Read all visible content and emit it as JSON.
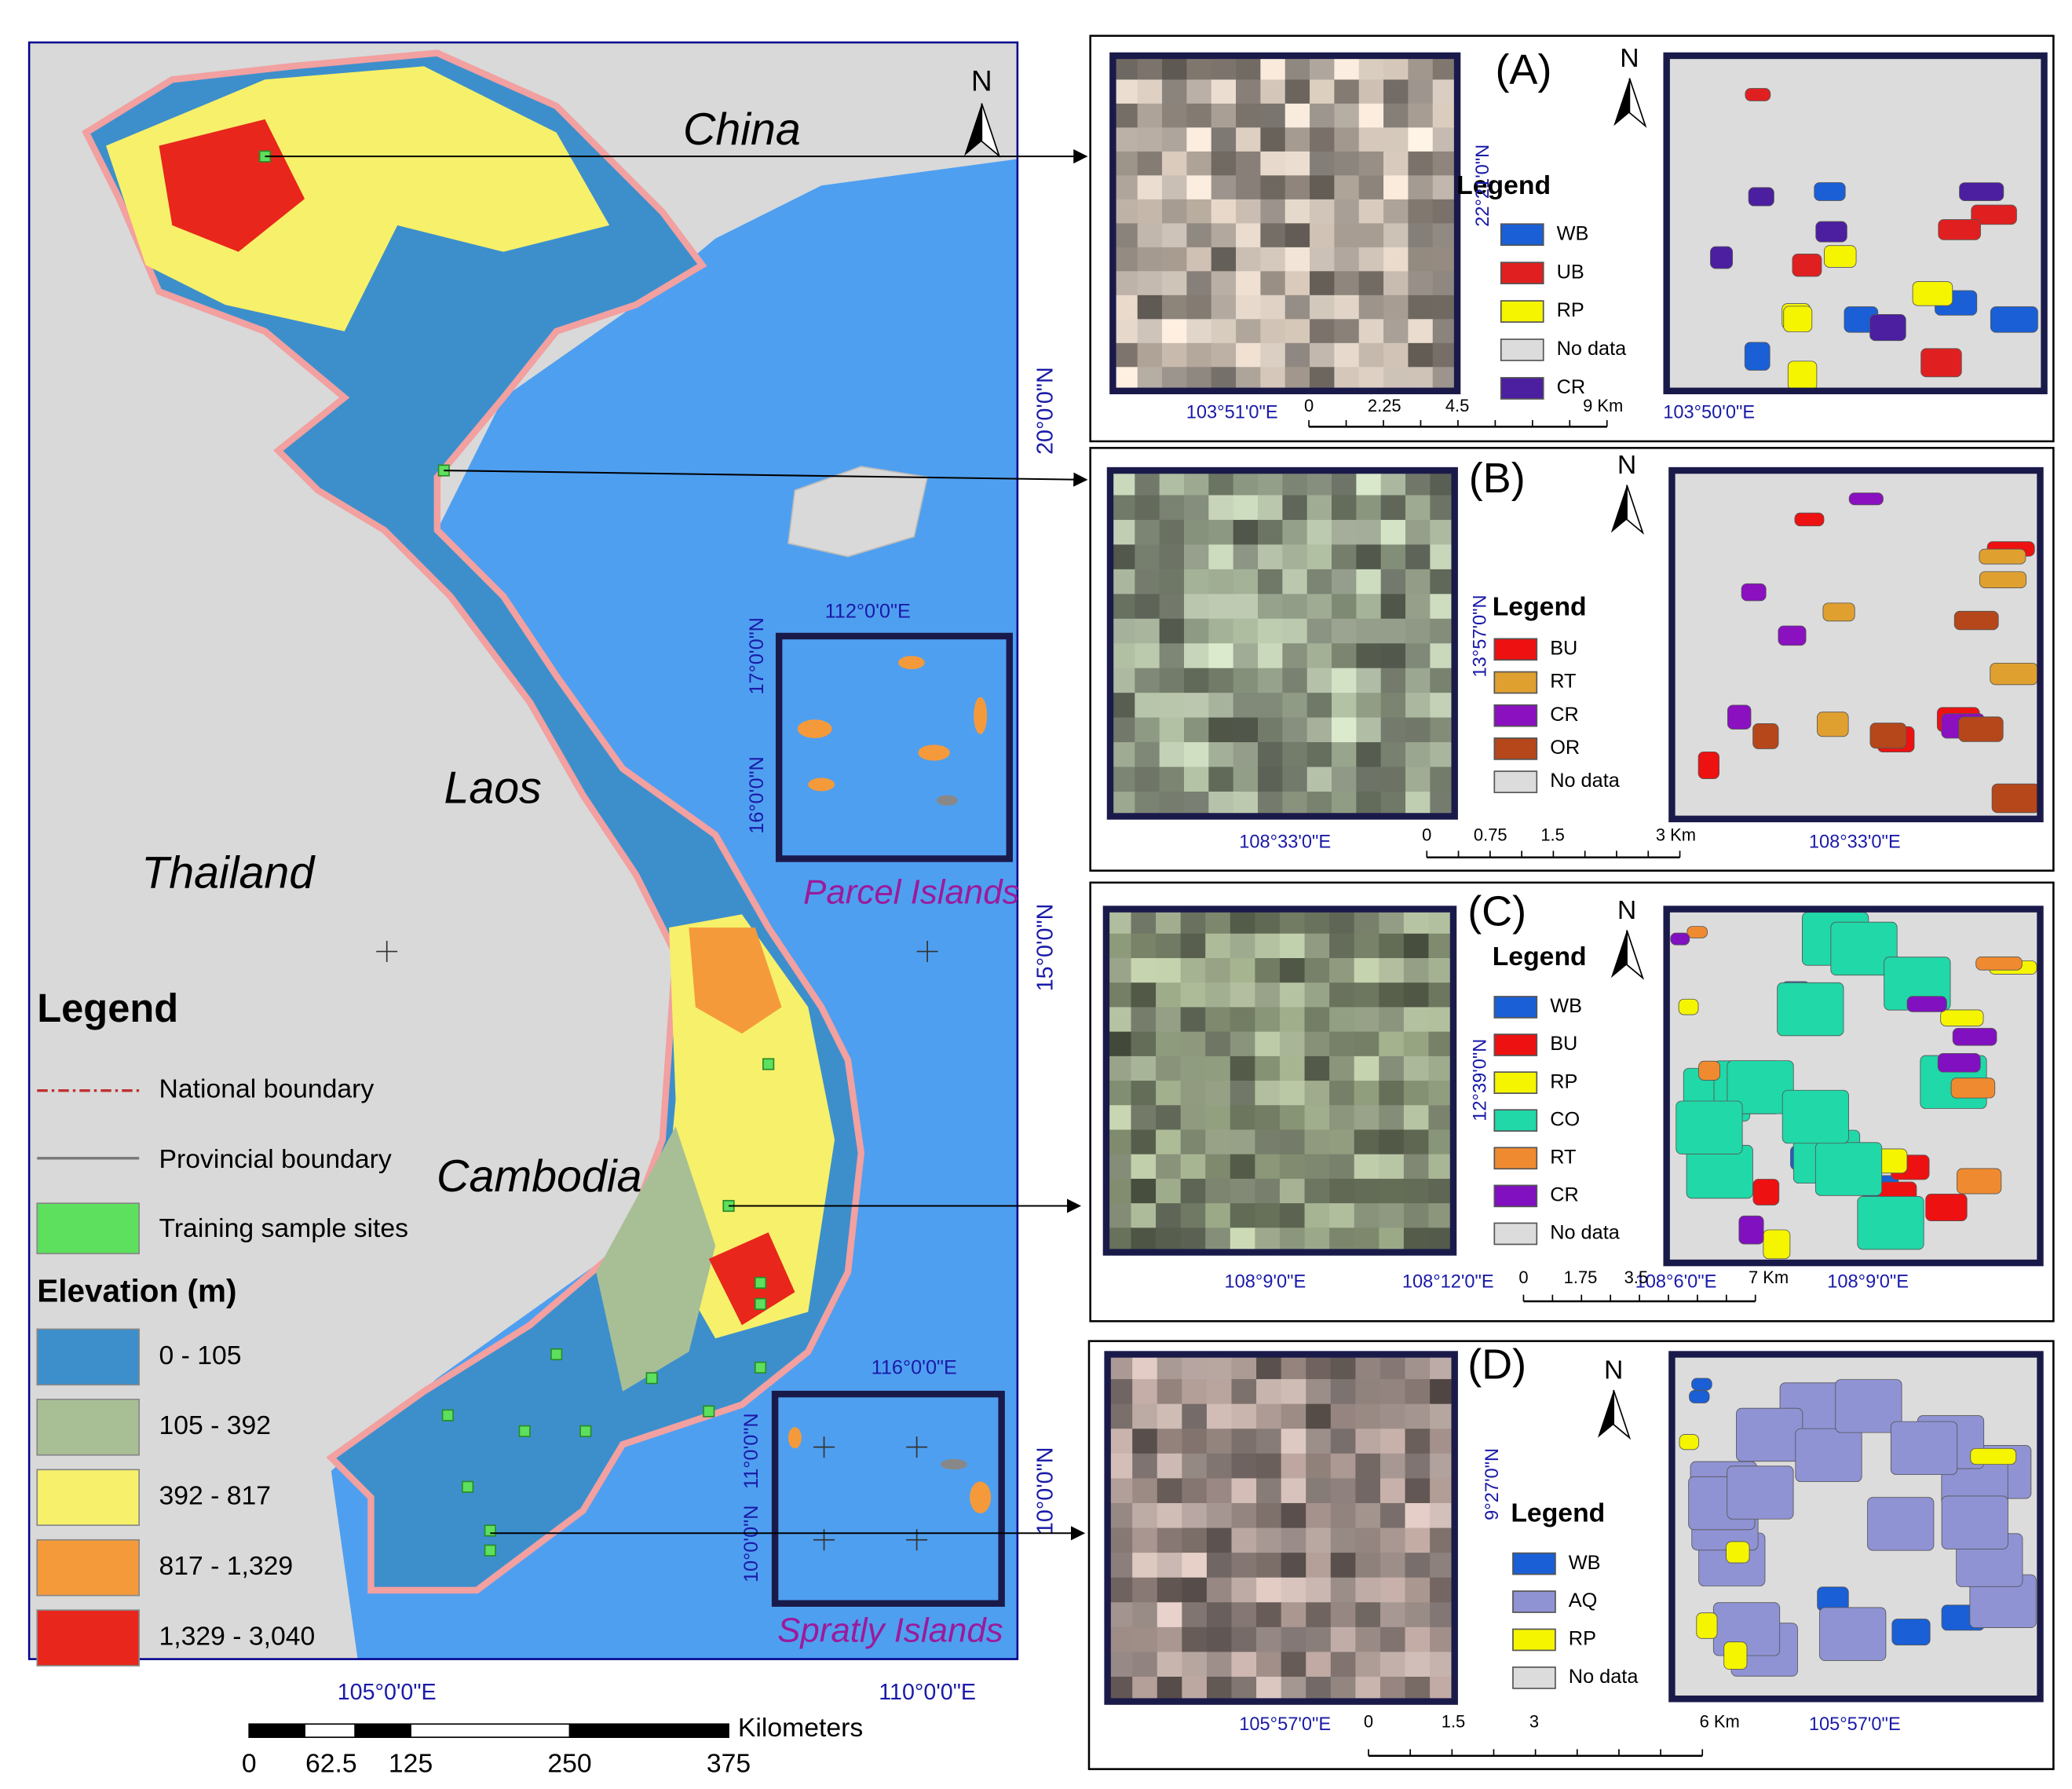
{
  "main_map": {
    "countries": [
      "China",
      "Laos",
      "Thailand",
      "Cambodia"
    ],
    "islands": [
      "Parcel Islands",
      "Spratly Islands"
    ],
    "north": "N",
    "lat_labels": [
      "20°0'0\"N",
      "15°0'0\"N",
      "10°0'0\"N"
    ],
    "lon_labels": [
      "105°0'0\"E",
      "110°0'0\"E"
    ],
    "inset_labels": [
      "112°0'0\"E",
      "17°0'0\"N",
      "16°0'0\"N",
      "116°0'0\"E",
      "11°0'0\"N",
      "10°0'0\"N"
    ],
    "legend": {
      "title": "Legend",
      "items": [
        "National boundary",
        "Provincial boundary",
        "Training sample sites"
      ],
      "elevation_title": "Elevation (m)",
      "elevation_classes": [
        {
          "label": "0 - 105",
          "color": "#3d8fcc"
        },
        {
          "label": "105 - 392",
          "color": "#a8bf96"
        },
        {
          "label": "392 - 817",
          "color": "#f7f06a"
        },
        {
          "label": "817 - 1,329",
          "color": "#f59a3a"
        },
        {
          "label": "1,329 - 3,040",
          "color": "#e8261c"
        }
      ]
    },
    "scale": {
      "unit": "Kilometers",
      "ticks": [
        "0",
        "62.5",
        "125",
        "250",
        "375"
      ]
    }
  },
  "panels": [
    {
      "label": "(A)",
      "north": "N",
      "legend_title": "Legend",
      "lat_label": "22°21'0\"N",
      "lon_labels": [
        "103°51'0\"E",
        "103°50'0\"E"
      ],
      "classes": [
        {
          "code": "WB",
          "color": "#1a5fd6"
        },
        {
          "code": "UB",
          "color": "#e02020"
        },
        {
          "code": "RP",
          "color": "#f5f500"
        },
        {
          "code": "No data",
          "color": "#dcdcdc"
        },
        {
          "code": "CR",
          "color": "#4b1fa0"
        }
      ],
      "scale": [
        "0",
        "2.25",
        "4.5",
        "9 Km"
      ]
    },
    {
      "label": "(B)",
      "north": "N",
      "legend_title": "Legend",
      "lat_label": "13°57'0\"N",
      "lon_labels": [
        "108°33'0\"E",
        "108°33'0\"E"
      ],
      "classes": [
        {
          "code": "BU",
          "color": "#ee1111"
        },
        {
          "code": "RT",
          "color": "#e0a030"
        },
        {
          "code": "CR",
          "color": "#8a10c0"
        },
        {
          "code": "OR",
          "color": "#b5471a"
        },
        {
          "code": "No data",
          "color": "#dcdcdc"
        }
      ],
      "scale": [
        "0",
        "0.75",
        "1.5",
        "3 Km"
      ]
    },
    {
      "label": "(C)",
      "north": "N",
      "legend_title": "Legend",
      "lat_label": "12°39'0\"N",
      "lon_labels": [
        "108°9'0\"E",
        "108°12'0\"E",
        "108°6'0\"E",
        "108°9'0\"E"
      ],
      "classes": [
        {
          "code": "WB",
          "color": "#1a5fd6"
        },
        {
          "code": "BU",
          "color": "#ee1111"
        },
        {
          "code": "RP",
          "color": "#f5f500"
        },
        {
          "code": "CO",
          "color": "#20d8a8"
        },
        {
          "code": "RT",
          "color": "#f08a30"
        },
        {
          "code": "CR",
          "color": "#8010c0"
        },
        {
          "code": "No data",
          "color": "#dcdcdc"
        }
      ],
      "scale": [
        "0",
        "1.75",
        "3.5",
        "7 Km"
      ]
    },
    {
      "label": "(D)",
      "north": "N",
      "legend_title": "Legend",
      "lat_label": "9°27'0\"N",
      "lon_labels": [
        "105°57'0\"E",
        "105°57'0\"E"
      ],
      "classes": [
        {
          "code": "WB",
          "color": "#1a5fd6"
        },
        {
          "code": "AQ",
          "color": "#8f93d4"
        },
        {
          "code": "RP",
          "color": "#f5f500"
        },
        {
          "code": "No data",
          "color": "#dcdcdc"
        }
      ],
      "scale": [
        "0",
        "1.5",
        "3",
        "6 Km"
      ]
    }
  ]
}
